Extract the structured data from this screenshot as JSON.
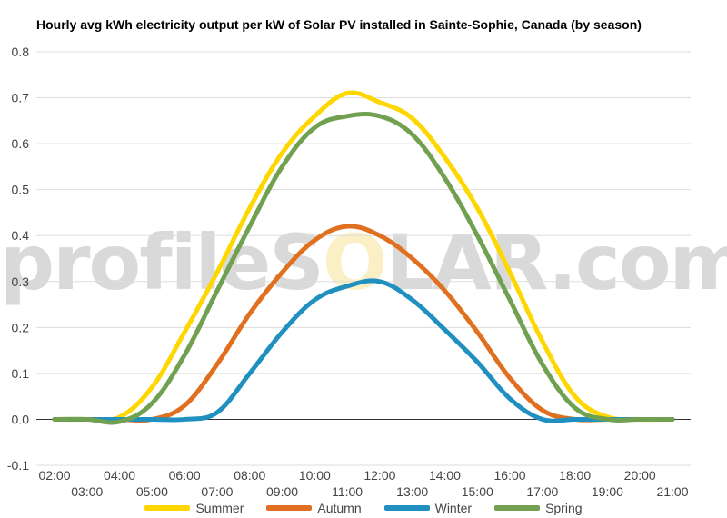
{
  "watermark": {
    "left": "profileS",
    "sun": "O",
    "right": "LAR.com"
  },
  "chart_data": {
    "type": "line",
    "title": "Hourly avg kWh electricity output per kW of Solar PV installed in Sainte-Sophie, Canada (by season)",
    "xlabel": "",
    "ylabel": "",
    "ylim": [
      -0.1,
      0.8
    ],
    "yticks": [
      "-0.1",
      "0.0",
      "0.1",
      "0.2",
      "0.3",
      "0.4",
      "0.5",
      "0.6",
      "0.7",
      "0.8"
    ],
    "x": [
      "02:00",
      "03:00",
      "04:00",
      "05:00",
      "06:00",
      "07:00",
      "08:00",
      "09:00",
      "10:00",
      "11:00",
      "12:00",
      "13:00",
      "14:00",
      "15:00",
      "16:00",
      "17:00",
      "18:00",
      "19:00",
      "20:00",
      "21:00"
    ],
    "grid": true,
    "legend": "bottom",
    "series": [
      {
        "name": "Summer",
        "color": "#FFD700",
        "values": [
          0,
          0,
          0.005,
          0.07,
          0.19,
          0.32,
          0.46,
          0.58,
          0.66,
          0.71,
          0.69,
          0.655,
          0.57,
          0.46,
          0.32,
          0.17,
          0.05,
          0.005,
          0,
          0
        ]
      },
      {
        "name": "Autumn",
        "color": "#E07020",
        "values": [
          0,
          0,
          0,
          0,
          0.03,
          0.12,
          0.23,
          0.32,
          0.39,
          0.42,
          0.4,
          0.35,
          0.28,
          0.19,
          0.09,
          0.02,
          0,
          0,
          0,
          0
        ]
      },
      {
        "name": "Winter",
        "color": "#2090C0",
        "values": [
          0,
          0,
          0,
          0,
          0,
          0.015,
          0.1,
          0.19,
          0.26,
          0.29,
          0.3,
          0.26,
          0.195,
          0.125,
          0.045,
          0,
          0,
          0,
          0,
          0
        ]
      },
      {
        "name": "Spring",
        "color": "#70A050",
        "values": [
          0,
          0,
          -0.005,
          0.035,
          0.14,
          0.28,
          0.42,
          0.55,
          0.635,
          0.66,
          0.66,
          0.62,
          0.525,
          0.4,
          0.26,
          0.12,
          0.025,
          0,
          0,
          0
        ]
      }
    ]
  }
}
